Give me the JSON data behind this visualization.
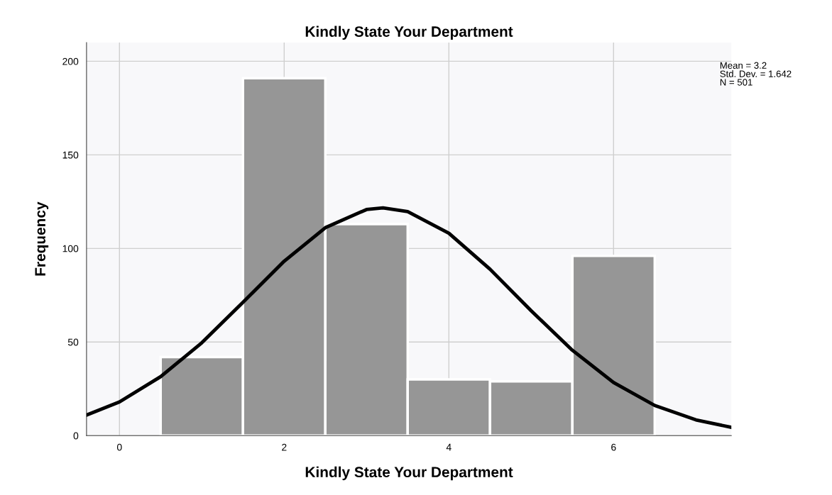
{
  "chart_data": {
    "type": "histogram",
    "title": "Kindly State Your Department",
    "xlabel": "Kindly State Your Department",
    "ylabel": "Frequency",
    "bins": [
      0.5,
      1.5,
      2.5,
      3.5,
      4.5,
      5.5,
      6.5
    ],
    "series": [
      {
        "color": "#969696",
        "values": [
          42,
          191,
          113,
          30,
          29,
          96
        ]
      },
      {
        "type": "line",
        "color": "#000000",
        "x": [
          -0.4,
          0,
          0.5,
          1,
          1.5,
          2,
          2.5,
          3,
          3.2,
          3.5,
          4,
          4.5,
          5,
          5.5,
          6,
          6.5,
          7,
          7.43
        ],
        "values": [
          11,
          18,
          31.5,
          49.6,
          71.2,
          93.2,
          111.1,
          120.8,
          121.7,
          119.7,
          108.1,
          88.9,
          66.7,
          45.6,
          28.4,
          16.1,
          8.4,
          4.4
        ]
      }
    ],
    "xlim": [
      -0.4,
      7.43
    ],
    "ylim": [
      0,
      210
    ],
    "xticks": [
      0,
      2,
      4,
      6
    ],
    "yticks": [
      0,
      50,
      100,
      150,
      200
    ],
    "grid": true,
    "legend": false,
    "annotations": [
      "Mean = 3.2",
      "Std. Dev. = 1.642",
      "N = 501"
    ]
  }
}
